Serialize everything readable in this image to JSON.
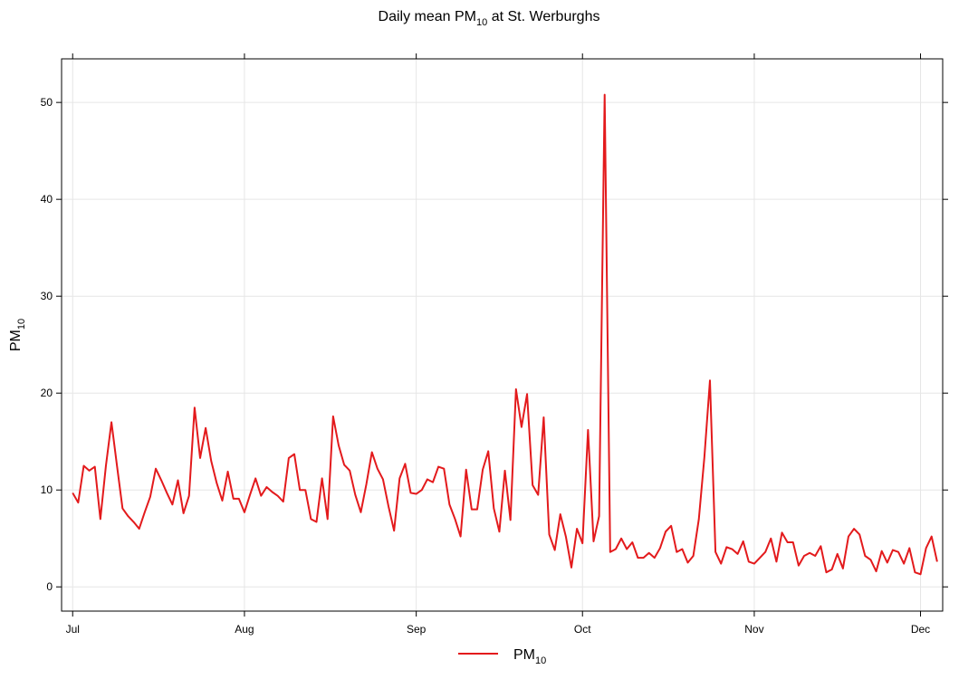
{
  "chart_data": {
    "type": "line",
    "title": "Daily mean PM",
    "title_subscript": "10",
    "title_suffix": " at St. Werburghs",
    "xlabel": "",
    "ylabel": "PM",
    "ylabel_subscript": "10",
    "x_ticks": [
      "Jul",
      "Aug",
      "Sep",
      "Oct",
      "Nov",
      "Dec"
    ],
    "x_tick_dates": [
      "2009-07-01",
      "2009-08-01",
      "2009-09-01",
      "2009-10-01",
      "2009-11-01",
      "2009-12-01"
    ],
    "y_ticks": [
      0,
      10,
      20,
      30,
      40,
      50
    ],
    "xlim": [
      "2009-06-29",
      "2009-12-05"
    ],
    "ylim": [
      -2.5,
      54.5
    ],
    "grid": true,
    "legend_position": "bottom",
    "series": [
      {
        "name": "PM",
        "name_subscript": "10",
        "color": "#e31a1c",
        "start_date": "2009-07-01",
        "values": [
          9.7,
          8.7,
          12.5,
          12.0,
          12.4,
          7.0,
          12.5,
          17.0,
          12.5,
          8.1,
          7.3,
          6.7,
          6.0,
          7.7,
          9.3,
          12.2,
          11.0,
          9.7,
          8.5,
          11.0,
          7.6,
          9.4,
          18.5,
          13.3,
          16.4,
          13.0,
          10.7,
          8.9,
          11.9,
          9.1,
          9.1,
          7.7,
          9.5,
          11.2,
          9.4,
          10.3,
          9.8,
          9.4,
          8.8,
          13.3,
          13.7,
          10.0,
          10.0,
          7.0,
          6.7,
          11.2,
          7.0,
          17.6,
          14.6,
          12.6,
          12.0,
          9.5,
          7.7,
          10.6,
          13.9,
          12.2,
          11.1,
          8.3,
          5.8,
          11.2,
          12.7,
          9.7,
          9.6,
          10.0,
          11.1,
          10.8,
          12.4,
          12.2,
          8.5,
          7.0,
          5.2,
          12.1,
          8.0,
          8.0,
          12.1,
          14.0,
          8.1,
          5.7,
          12.0,
          6.9,
          20.4,
          16.5,
          19.9,
          10.5,
          9.5,
          17.5,
          5.4,
          3.8,
          7.5,
          5.2,
          2.0,
          6.0,
          4.5,
          16.2,
          4.7,
          7.3,
          50.8,
          3.6,
          3.9,
          5.0,
          3.9,
          4.6,
          3.0,
          3.0,
          3.5,
          3.0,
          4.0,
          5.7,
          6.3,
          3.6,
          3.9,
          2.5,
          3.2,
          7.0,
          13.4,
          21.3,
          3.6,
          2.4,
          4.1,
          3.9,
          3.4,
          4.7,
          2.6,
          2.4,
          3.0,
          3.6,
          5.0,
          2.6,
          5.6,
          4.6,
          4.6,
          2.2,
          3.2,
          3.5,
          3.2,
          4.2,
          1.5,
          1.8,
          3.4,
          1.9,
          5.2,
          6.0,
          5.4,
          3.2,
          2.8,
          1.6,
          3.7,
          2.5,
          3.8,
          3.6,
          2.4,
          4.0,
          1.5,
          1.3,
          4.0,
          5.2,
          2.6
        ]
      }
    ]
  }
}
